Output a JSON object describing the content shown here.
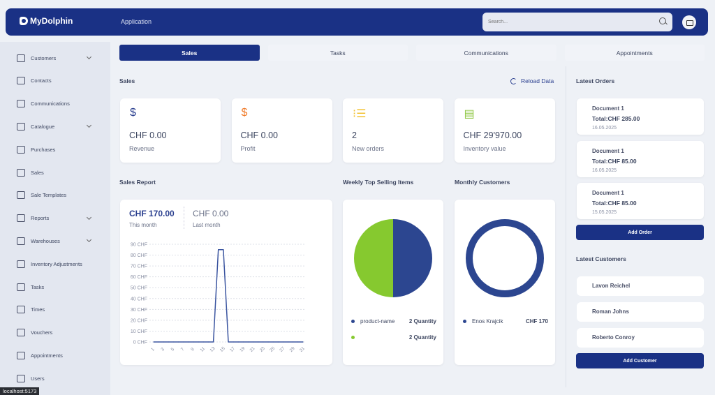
{
  "header": {
    "brand": "MyDolphin",
    "section": "Application",
    "search_placeholder": "Search..."
  },
  "sidebar": {
    "items": [
      {
        "label": "Customers",
        "icon": "users-icon",
        "expandable": true
      },
      {
        "label": "Contacts",
        "icon": "book-icon"
      },
      {
        "label": "Communications",
        "icon": "chat-icon"
      },
      {
        "label": "Catalogue",
        "icon": "folder-icon",
        "expandable": true
      },
      {
        "label": "Purchases",
        "icon": "cart-icon"
      },
      {
        "label": "Sales",
        "icon": "dollar-icon"
      },
      {
        "label": "Sale Templates",
        "icon": "template-icon"
      },
      {
        "label": "Reports",
        "icon": "bar-chart-icon",
        "expandable": true
      },
      {
        "label": "Warehouses",
        "icon": "truck-icon",
        "expandable": true
      },
      {
        "label": "Inventory Adjustments",
        "icon": "file-plus-icon"
      },
      {
        "label": "Tasks",
        "icon": "checkbox-icon"
      },
      {
        "label": "Times",
        "icon": "clock-icon"
      },
      {
        "label": "Vouchers",
        "icon": "gift-icon"
      },
      {
        "label": "Appointments",
        "icon": "edit-icon"
      },
      {
        "label": "Users",
        "icon": "user-icon"
      }
    ]
  },
  "tabs": [
    {
      "label": "Sales",
      "active": true
    },
    {
      "label": "Tasks"
    },
    {
      "label": "Communications"
    },
    {
      "label": "Appointments"
    }
  ],
  "sales": {
    "title": "Sales",
    "reload_label": "Reload Data"
  },
  "kpis": [
    {
      "value": "CHF 0.00",
      "label": "Revenue",
      "icon": "$",
      "color": "#2a3f8f"
    },
    {
      "value": "CHF 0.00",
      "label": "Profit",
      "icon": "$",
      "color": "#f07b2a"
    },
    {
      "value": "2",
      "label": "New orders",
      "icon": "⁝☰",
      "color": "#f2c230"
    },
    {
      "value": "CHF 29'970.00",
      "label": "Inventory value",
      "icon": "▤",
      "color": "#8cc63f"
    }
  ],
  "sales_report": {
    "title": "Sales Report",
    "this_month_value": "CHF 170.00",
    "this_month_label": "This month",
    "last_month_value": "CHF 0.00",
    "last_month_label": "Last month"
  },
  "weekly": {
    "title": "Weekly Top Selling Items",
    "items": [
      {
        "name": "product-name",
        "qty": "2 Quantity",
        "color": "#2c4690",
        "value": 2
      },
      {
        "name": "",
        "qty": "2 Quantity",
        "color": "#86c92f",
        "value": 2
      }
    ]
  },
  "monthly": {
    "title": "Monthly Customers",
    "items": [
      {
        "name": "Enos Krajcik",
        "amount": "CHF 170",
        "color": "#2c4690",
        "value": 170
      }
    ]
  },
  "orders": {
    "title": "Latest Orders",
    "items": [
      {
        "doc": "Document 1",
        "total": "Total:CHF 285.00",
        "date": "16.05.2025"
      },
      {
        "doc": "Document 1",
        "total": "Total:CHF 85.00",
        "date": "16.05.2025"
      },
      {
        "doc": "Document 1",
        "total": "Total:CHF 85.00",
        "date": "15.05.2025"
      }
    ],
    "add_label": "Add Order"
  },
  "customers": {
    "title": "Latest Customers",
    "items": [
      "Lavon Reichel",
      "Roman Johns",
      "Roberto Conroy"
    ],
    "add_label": "Add Customer"
  },
  "status_bar": "localhost:5173",
  "chart_data": {
    "type": "line",
    "x": [
      1,
      2,
      3,
      4,
      5,
      6,
      7,
      8,
      9,
      10,
      11,
      12,
      13,
      14,
      15,
      16,
      17,
      18,
      19,
      20,
      21,
      22,
      23,
      24,
      25,
      26,
      27,
      28,
      29,
      30,
      31
    ],
    "values": [
      0,
      0,
      0,
      0,
      0,
      0,
      0,
      0,
      0,
      0,
      0,
      0,
      0,
      85,
      85,
      0,
      0,
      0,
      0,
      0,
      0,
      0,
      0,
      0,
      0,
      0,
      0,
      0,
      0,
      0,
      0
    ],
    "xticks": [
      "1",
      "3",
      "5",
      "7",
      "9",
      "11",
      "13",
      "15",
      "17",
      "19",
      "21",
      "23",
      "25",
      "27",
      "29",
      "31"
    ],
    "yticks": [
      "0 CHF",
      "10 CHF",
      "20 CHF",
      "30 CHF",
      "40 CHF",
      "50 CHF",
      "60 CHF",
      "70 CHF",
      "80 CHF",
      "90 CHF"
    ],
    "ylim": [
      0,
      90
    ],
    "grid": true,
    "color": "#3b55a0"
  }
}
